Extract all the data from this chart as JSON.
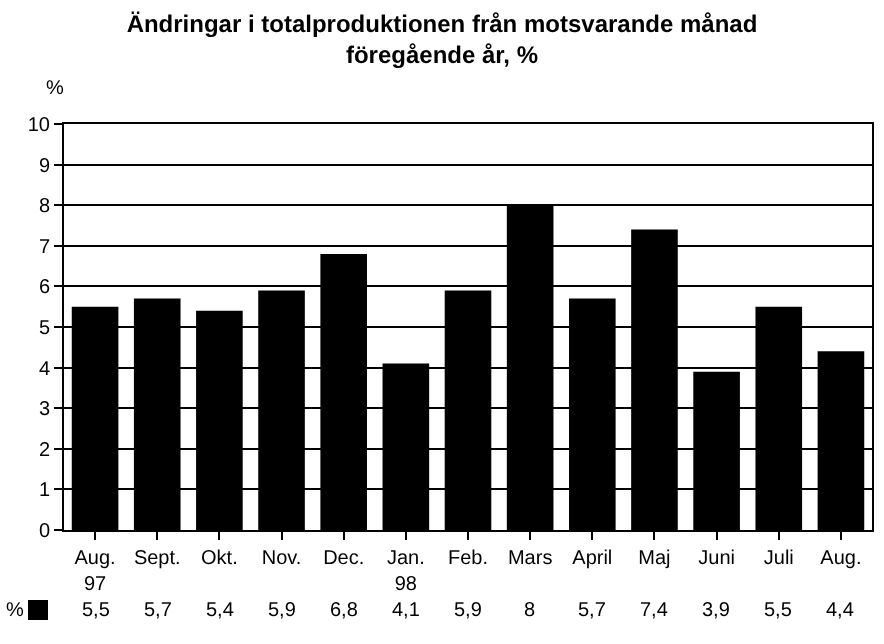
{
  "chart_data": {
    "type": "bar",
    "title": "Ändringar i totalproduktionen från motsvarande månad\nföregående år, %",
    "ylabel": "%",
    "categories": [
      "Aug.\n97",
      "Sept.",
      "Okt.",
      "Nov.",
      "Dec.",
      "Jan.\n98",
      "Feb.",
      "Mars",
      "April",
      "Maj",
      "Juni",
      "Juli",
      "Aug."
    ],
    "series": [
      {
        "name": "%",
        "color": "#000000",
        "values": [
          5.5,
          5.7,
          5.4,
          5.9,
          6.8,
          4.1,
          5.9,
          8,
          5.7,
          7.4,
          3.9,
          5.5,
          4.4
        ],
        "value_labels": [
          "5,5",
          "5,7",
          "5,4",
          "5,9",
          "6,8",
          "4,1",
          "5,9",
          "8",
          "5,7",
          "7,4",
          "3,9",
          "5,5",
          "4,4"
        ]
      }
    ],
    "ylim": [
      0,
      10
    ],
    "yticks": [
      0,
      1,
      2,
      3,
      4,
      5,
      6,
      7,
      8,
      9,
      10
    ],
    "grid": "y"
  }
}
